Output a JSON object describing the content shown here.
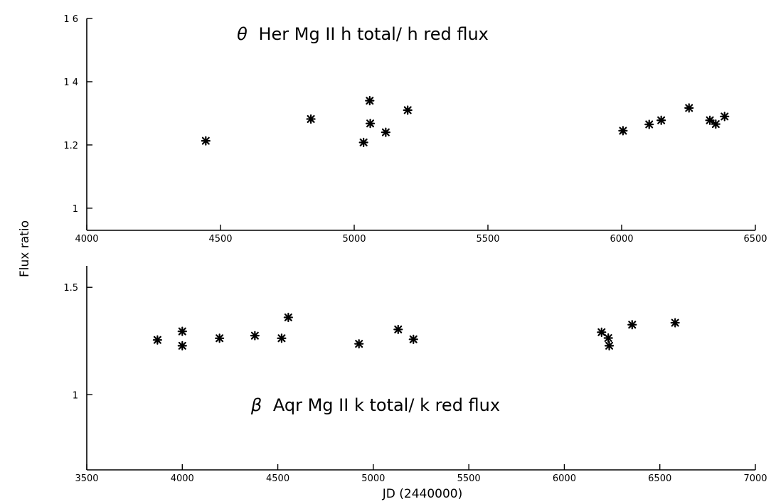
{
  "figure": {
    "ylabel": "Flux ratio",
    "xlabel": "JD (2440000)"
  },
  "chart_data": [
    {
      "type": "scatter",
      "title_symbol": "θ",
      "title_text": "Her Mg II h total/ h red flux",
      "xlabel": "",
      "ylabel": "Flux ratio",
      "xlim": [
        4000,
        6500
      ],
      "ylim": [
        0.93,
        1.6
      ],
      "x_ticks": [
        4000,
        4500,
        5000,
        5500,
        6000,
        6500
      ],
      "x_tick_labels": [
        "4000",
        "4500",
        "5000",
        "5500",
        "6000",
        "6500"
      ],
      "y_ticks": [
        1.0,
        1.2,
        1.4,
        1.6
      ],
      "y_tick_labels": [
        "1",
        "1.2",
        "1 4",
        "1 6"
      ],
      "grid": false,
      "marker": "asterisk",
      "series": [
        {
          "x": [
            4445,
            4838,
            5035,
            5058,
            5060,
            5118,
            5200,
            6005,
            6103,
            6148,
            6252,
            6330,
            6352,
            6385
          ],
          "y": [
            1.213,
            1.282,
            1.208,
            1.34,
            1.268,
            1.24,
            1.31,
            1.245,
            1.265,
            1.278,
            1.317,
            1.278,
            1.266,
            1.29
          ]
        }
      ]
    },
    {
      "type": "scatter",
      "title_symbol": "β",
      "title_text": "Aqr Mg II k total/ k red flux",
      "xlabel": "JD (2440000)",
      "ylabel": "Flux ratio",
      "xlim": [
        3500,
        7000
      ],
      "ylim": [
        0.65,
        1.6
      ],
      "x_ticks": [
        3500,
        4000,
        4500,
        5000,
        5500,
        6000,
        6500,
        7000
      ],
      "x_tick_labels": [
        "3500",
        "4000",
        "4500",
        "5000",
        "5500",
        "6000",
        "6500",
        "7000"
      ],
      "y_ticks": [
        1.0,
        1.5
      ],
      "y_tick_labels": [
        "1",
        "1.5"
      ],
      "grid": false,
      "marker": "asterisk",
      "series": [
        {
          "x": [
            3870,
            4000,
            4000,
            4195,
            4380,
            4520,
            4555,
            4925,
            5130,
            5210,
            6195,
            6230,
            6235,
            6355,
            6580
          ],
          "y": [
            1.255,
            1.295,
            1.228,
            1.263,
            1.275,
            1.263,
            1.36,
            1.237,
            1.304,
            1.258,
            1.291,
            1.264,
            1.228,
            1.326,
            1.335
          ]
        }
      ]
    }
  ]
}
